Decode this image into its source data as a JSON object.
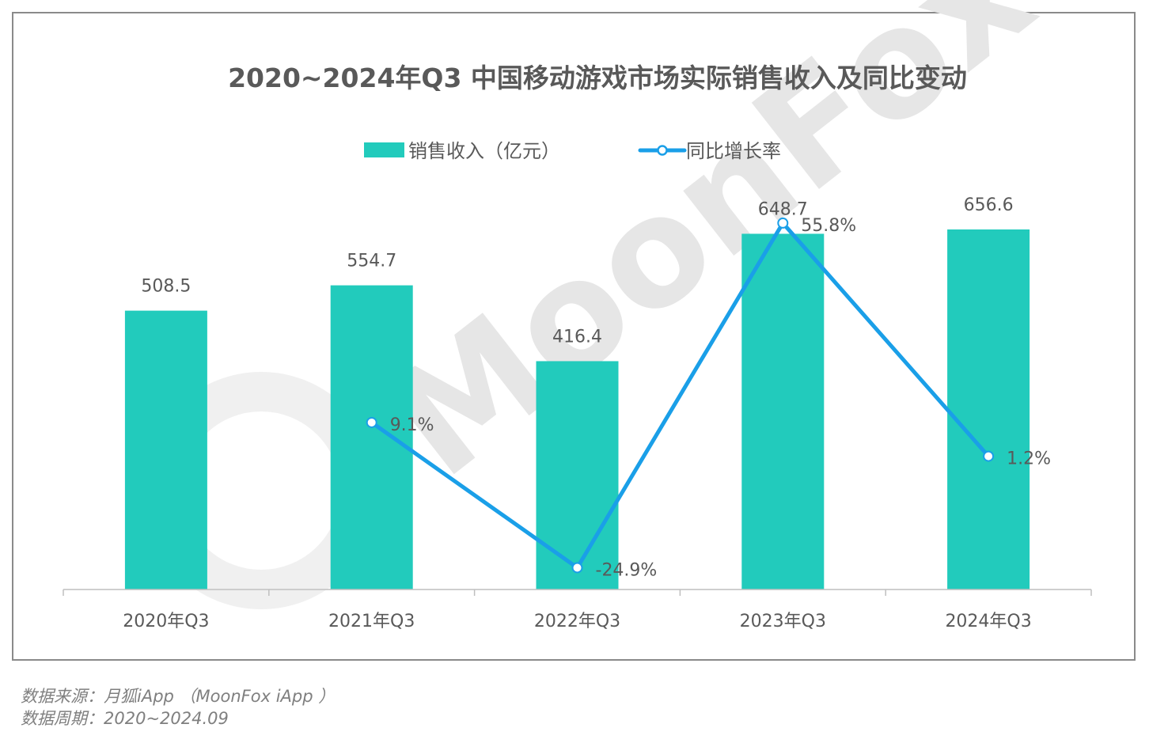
{
  "chart_data": {
    "type": "bar+line",
    "title": "2020~2024年Q3 中国移动游戏市场实际销售收入及同比变动",
    "categories": [
      "2020年Q3",
      "2021年Q3",
      "2022年Q3",
      "2023年Q3",
      "2024年Q3"
    ],
    "series": [
      {
        "name": "销售收入（亿元）",
        "type": "bar",
        "axis": "primary",
        "values": [
          508.5,
          554.7,
          416.4,
          648.7,
          656.6
        ],
        "labels": [
          "508.5",
          "554.7",
          "416.4",
          "648.7",
          "656.6"
        ],
        "color": "#22CBBC"
      },
      {
        "name": "同比增长率",
        "type": "line",
        "axis": "secondary",
        "values": [
          null,
          9.1,
          -24.9,
          55.8,
          1.2
        ],
        "labels": [
          "",
          "9.1%",
          "-24.9%",
          "55.8%",
          "1.2%"
        ],
        "color": "#1A9FE8"
      }
    ],
    "ylim": [
      0,
      1000
    ],
    "y2lim": [
      -30,
      98.4
    ],
    "grid": false,
    "legend_position": "top-center"
  },
  "watermark": "MoonFox",
  "footer": {
    "source": "数据来源：月狐iApp （MoonFox iApp ）",
    "period": "数据周期：2020~2024.09"
  }
}
